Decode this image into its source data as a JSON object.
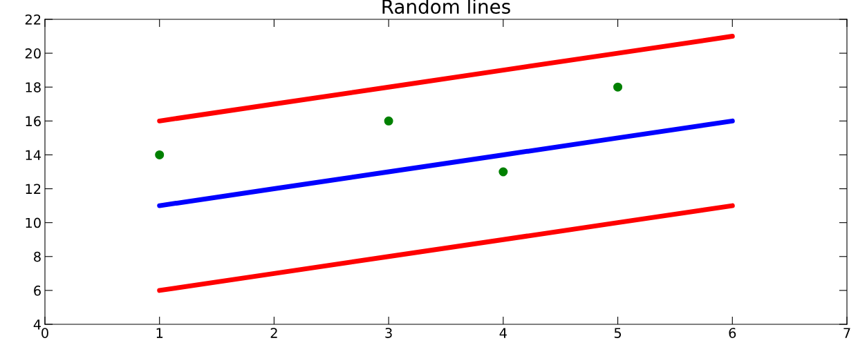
{
  "chart_data": {
    "type": "line",
    "title": "Random lines",
    "series": [
      {
        "color": "#ff0000",
        "x": [
          1,
          2,
          3,
          4,
          5,
          6
        ],
        "values": [
          16,
          17,
          18,
          19,
          20,
          21
        ]
      },
      {
        "color": "#0000ff",
        "x": [
          1,
          2,
          3,
          4,
          5,
          6
        ],
        "values": [
          11,
          12,
          13,
          14,
          15,
          16
        ]
      },
      {
        "color": "#ff0000",
        "x": [
          1,
          2,
          3,
          4,
          5,
          6
        ],
        "values": [
          6,
          7,
          8,
          9,
          10,
          11
        ]
      },
      {
        "type": "scatter",
        "color": "#008000",
        "x": [
          1,
          3,
          4,
          5
        ],
        "values": [
          14,
          16,
          13,
          18
        ]
      }
    ],
    "xlim": [
      0,
      7
    ],
    "xticks": [
      0,
      1,
      2,
      3,
      4,
      5,
      6,
      7
    ],
    "ylim": [
      4,
      22
    ],
    "yticks": [
      4,
      6,
      8,
      10,
      12,
      14,
      16,
      18,
      20,
      22
    ],
    "grid": false,
    "legend": false
  }
}
